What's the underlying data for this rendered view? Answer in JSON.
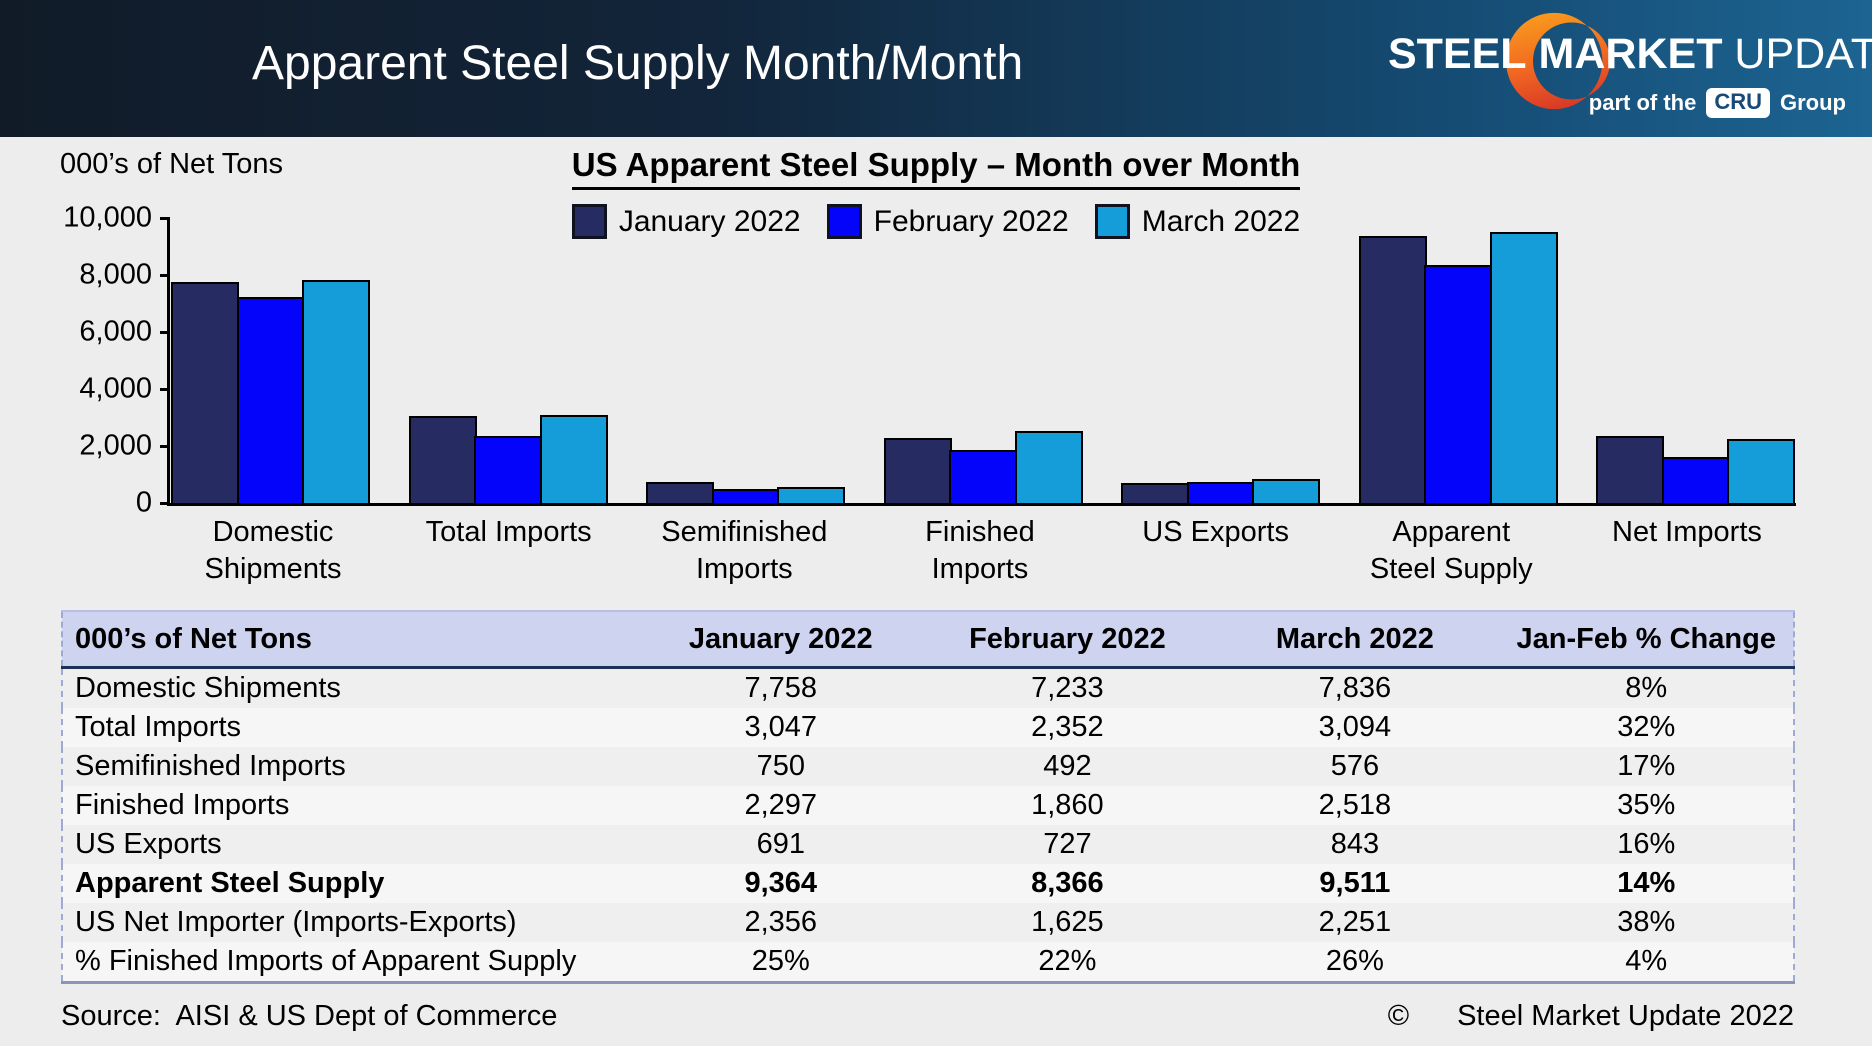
{
  "header": {
    "title": "Apparent Steel Supply Month/Month",
    "logo": {
      "steel": "STEEL",
      "market": "MARKET",
      "update": "UPDATE",
      "tagline_prefix": "part of the",
      "cru": "CRU",
      "tagline_suffix": "Group"
    }
  },
  "chart_data": {
    "type": "bar",
    "title": "US Apparent Steel Supply – Month over Month",
    "ylabel": "000’s of Net Tons",
    "xlabel": "",
    "ylim": [
      0,
      10000
    ],
    "yticks": [
      0,
      2000,
      4000,
      6000,
      8000,
      10000
    ],
    "ytick_labels": [
      "0",
      "2,000",
      "4,000",
      "6,000",
      "8,000",
      "10,000"
    ],
    "grid": false,
    "legend_position": "top",
    "categories": [
      "Domestic Shipments",
      "Total Imports",
      "Semifinished Imports",
      "Finished Imports",
      "US Exports",
      "Apparent Steel Supply",
      "Net Imports"
    ],
    "category_label_lines": [
      [
        "Domestic",
        "Shipments"
      ],
      [
        "Total Imports"
      ],
      [
        "Semifinished",
        "Imports"
      ],
      [
        "Finished Imports"
      ],
      [
        "US Exports"
      ],
      [
        "Apparent",
        "Steel Supply"
      ],
      [
        "Net Imports"
      ]
    ],
    "series": [
      {
        "name": "January 2022",
        "color": "#262C61",
        "values": [
          7758,
          3047,
          750,
          2297,
          691,
          9364,
          2356
        ]
      },
      {
        "name": "February 2022",
        "color": "#0404FB",
        "values": [
          7233,
          2352,
          492,
          1860,
          727,
          8366,
          1625
        ]
      },
      {
        "name": "March 2022",
        "color": "#149DD8",
        "values": [
          7836,
          3094,
          576,
          2518,
          843,
          9511,
          2251
        ]
      }
    ]
  },
  "table": {
    "columns": [
      "000’s of Net Tons",
      "January 2022",
      "February 2022",
      "March 2022",
      "Jan-Feb % Change"
    ],
    "rows": [
      {
        "label": "Domestic Shipments",
        "values": [
          "7,758",
          "7,233",
          "7,836",
          "8%"
        ],
        "bold": false
      },
      {
        "label": "Total Imports",
        "values": [
          "3,047",
          "2,352",
          "3,094",
          "32%"
        ],
        "bold": false
      },
      {
        "label": "Semifinished Imports",
        "values": [
          "750",
          "492",
          "576",
          "17%"
        ],
        "bold": false
      },
      {
        "label": "Finished Imports",
        "values": [
          "2,297",
          "1,860",
          "2,518",
          "35%"
        ],
        "bold": false
      },
      {
        "label": "US Exports",
        "values": [
          "691",
          "727",
          "843",
          "16%"
        ],
        "bold": false
      },
      {
        "label": "Apparent Steel Supply",
        "values": [
          "9,364",
          "8,366",
          "9,511",
          "14%"
        ],
        "bold": true
      },
      {
        "label": "US Net Importer (Imports-Exports)",
        "values": [
          "2,356",
          "1,625",
          "2,251",
          "38%"
        ],
        "bold": false
      },
      {
        "label": "% Finished Imports of Apparent Supply",
        "values": [
          "25%",
          "22%",
          "26%",
          "4%"
        ],
        "bold": false
      }
    ]
  },
  "footer": {
    "source": "Source:  AISI & US Dept of Commerce",
    "copyright_symbol": "©",
    "copyright_text": "Steel Market Update 2022"
  },
  "colors": {
    "page_background": "#EDEDED",
    "header_gradient_left": "#111B28",
    "header_gradient_right": "#1D6492",
    "table_header_background": "#CED3F0",
    "table_header_border": "#1F3058",
    "crescent_orange": "#F99D1C",
    "crescent_red": "#D93A26"
  }
}
